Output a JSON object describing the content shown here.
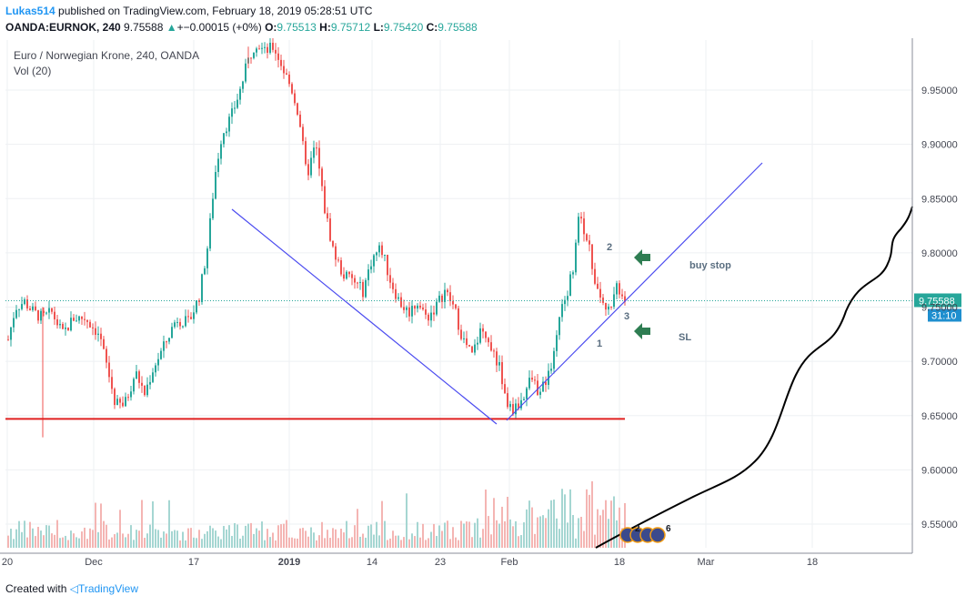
{
  "header": {
    "author": "Lukas514",
    "published": "published on TradingView.com, February 18, 2019 05:28:51 UTC",
    "symbol": "OANDA:EURNOK, 240",
    "last": "9.75588",
    "change_arrow": "▲",
    "change": "+−0.00015 (+0%)",
    "o_label": "O:",
    "o_value": "9.75513",
    "h_label": "H:",
    "h_value": "9.75712",
    "l_label": "L:",
    "l_value": "9.75420",
    "c_label": "C:",
    "c_value": "9.75588"
  },
  "footer": {
    "created_with": "Created with",
    "brand": "TradingView"
  },
  "colors": {
    "up": "#26a69a",
    "down": "#ef5350",
    "trendline": "#4c4cf0",
    "support": "#e02020",
    "arrow": "#2e7d52",
    "price_tag": "#26a69a",
    "countdown_tag": "#1f8fcf"
  },
  "icons": {
    "arrow_upper": "left-arrow-icon",
    "arrow_lower": "left-arrow-icon",
    "events": "flag-icon"
  },
  "chart_data": {
    "type": "candlestick",
    "title": "Euro / Norwegian Krone, 240, OANDA",
    "indicator": "Vol (20)",
    "y_ticks": [
      "9.95000",
      "9.90000",
      "9.85000",
      "9.80000",
      "9.75000",
      "9.70000",
      "9.65000",
      "9.60000",
      "9.55000"
    ],
    "y_tick_values": [
      9.95,
      9.9,
      9.85,
      9.8,
      9.75,
      9.7,
      9.65,
      9.6,
      9.55
    ],
    "ylim": [
      9.525,
      9.997
    ],
    "x_ticks": [
      "20",
      "Dec",
      "17",
      "2019",
      "14",
      "23",
      "Feb",
      "18",
      "Mar",
      "18"
    ],
    "last_price": "9.75588",
    "countdown": "31:10",
    "price_path": [
      {
        "t": 0,
        "p": 9.72
      },
      {
        "t": 8,
        "p": 9.75
      },
      {
        "t": 18,
        "p": 9.755
      },
      {
        "t": 28,
        "p": 9.745
      },
      {
        "t": 38,
        "p": 9.74
      },
      {
        "t": 48,
        "p": 9.745
      },
      {
        "t": 60,
        "p": 9.725
      },
      {
        "t": 72,
        "p": 9.74
      },
      {
        "t": 85,
        "p": 9.74
      },
      {
        "t": 100,
        "p": 9.725
      },
      {
        "t": 110,
        "p": 9.69
      },
      {
        "t": 118,
        "p": 9.66
      },
      {
        "t": 128,
        "p": 9.66
      },
      {
        "t": 140,
        "p": 9.69
      },
      {
        "t": 150,
        "p": 9.67
      },
      {
        "t": 160,
        "p": 9.695
      },
      {
        "t": 172,
        "p": 9.715
      },
      {
        "t": 185,
        "p": 9.74
      },
      {
        "t": 198,
        "p": 9.735
      },
      {
        "t": 210,
        "p": 9.76
      },
      {
        "t": 220,
        "p": 9.81
      },
      {
        "t": 227,
        "p": 9.87
      },
      {
        "t": 235,
        "p": 9.91
      },
      {
        "t": 245,
        "p": 9.925
      },
      {
        "t": 255,
        "p": 9.95
      },
      {
        "t": 263,
        "p": 9.975
      },
      {
        "t": 272,
        "p": 9.995
      },
      {
        "t": 282,
        "p": 9.985
      },
      {
        "t": 292,
        "p": 9.99
      },
      {
        "t": 302,
        "p": 9.97
      },
      {
        "t": 312,
        "p": 9.95
      },
      {
        "t": 320,
        "p": 9.925
      },
      {
        "t": 328,
        "p": 9.87
      },
      {
        "t": 338,
        "p": 9.9
      },
      {
        "t": 348,
        "p": 9.84
      },
      {
        "t": 358,
        "p": 9.8
      },
      {
        "t": 368,
        "p": 9.78
      },
      {
        "t": 378,
        "p": 9.775
      },
      {
        "t": 390,
        "p": 9.765
      },
      {
        "t": 400,
        "p": 9.795
      },
      {
        "t": 410,
        "p": 9.805
      },
      {
        "t": 420,
        "p": 9.775
      },
      {
        "t": 430,
        "p": 9.755
      },
      {
        "t": 440,
        "p": 9.745
      },
      {
        "t": 450,
        "p": 9.755
      },
      {
        "t": 460,
        "p": 9.74
      },
      {
        "t": 470,
        "p": 9.75
      },
      {
        "t": 480,
        "p": 9.765
      },
      {
        "t": 490,
        "p": 9.75
      },
      {
        "t": 500,
        "p": 9.72
      },
      {
        "t": 510,
        "p": 9.705
      },
      {
        "t": 520,
        "p": 9.73
      },
      {
        "t": 530,
        "p": 9.715
      },
      {
        "t": 540,
        "p": 9.695
      },
      {
        "t": 548,
        "p": 9.66
      },
      {
        "t": 556,
        "p": 9.655
      },
      {
        "t": 565,
        "p": 9.665
      },
      {
        "t": 575,
        "p": 9.685
      },
      {
        "t": 585,
        "p": 9.67
      },
      {
        "t": 595,
        "p": 9.69
      },
      {
        "t": 605,
        "p": 9.735
      },
      {
        "t": 615,
        "p": 9.765
      },
      {
        "t": 622,
        "p": 9.79
      },
      {
        "t": 628,
        "p": 9.835
      },
      {
        "t": 636,
        "p": 9.815
      },
      {
        "t": 644,
        "p": 9.78
      },
      {
        "t": 652,
        "p": 9.76
      },
      {
        "t": 660,
        "p": 9.745
      },
      {
        "t": 668,
        "p": 9.775
      },
      {
        "t": 678,
        "p": 9.755
      }
    ],
    "volume_scale": "relative",
    "annotations": [
      {
        "text": "2",
        "kind": "label"
      },
      {
        "text": "3",
        "kind": "label"
      },
      {
        "text": "1",
        "kind": "label"
      },
      {
        "text": "buy stop",
        "kind": "note"
      },
      {
        "text": "SL",
        "kind": "note"
      }
    ],
    "events": [
      "2",
      "6"
    ],
    "support_level": 9.647,
    "grid": true,
    "legend": "top-left"
  }
}
